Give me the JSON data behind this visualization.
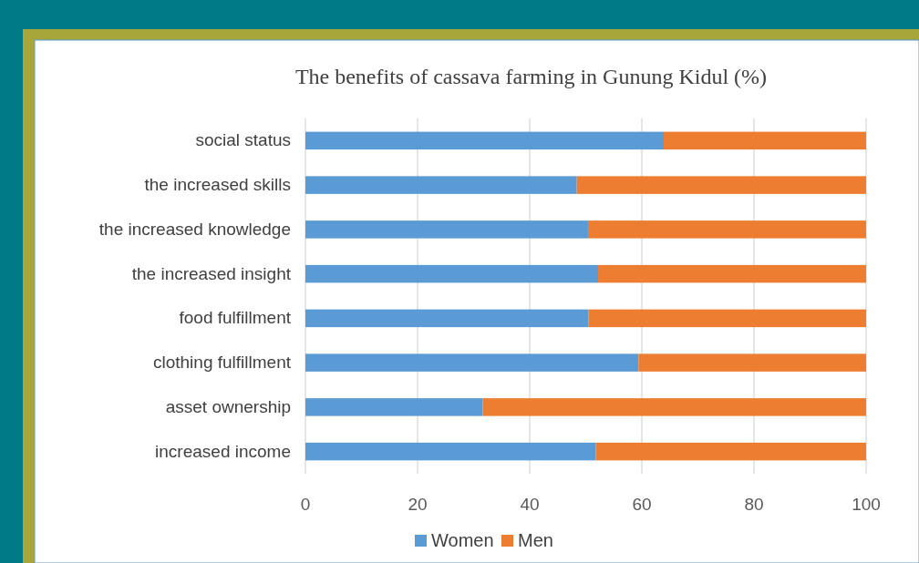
{
  "chart_data": {
    "type": "bar",
    "orientation": "horizontal",
    "stacked": true,
    "title": "The benefits of cassava farming in Gunung Kidul (%)",
    "categories": [
      "social status",
      "the increased skills",
      "the increased knowledge",
      "the increased insight",
      "food fulfillment",
      "clothing fulfillment",
      "asset ownership",
      "increased income"
    ],
    "series": [
      {
        "name": "Women",
        "color": "#5b9bd5",
        "values": [
          63.9,
          48.4,
          50.4,
          52.2,
          50.5,
          59.4,
          31.6,
          51.8
        ]
      },
      {
        "name": "Men",
        "color": "#ed7d31",
        "values": [
          36.1,
          51.6,
          49.6,
          47.8,
          49.5,
          40.6,
          68.4,
          48.2
        ]
      }
    ],
    "xlim": [
      0,
      100
    ],
    "xticks": [
      0,
      20,
      40,
      60,
      80,
      100
    ],
    "grid": "x",
    "legend": "bottom"
  }
}
